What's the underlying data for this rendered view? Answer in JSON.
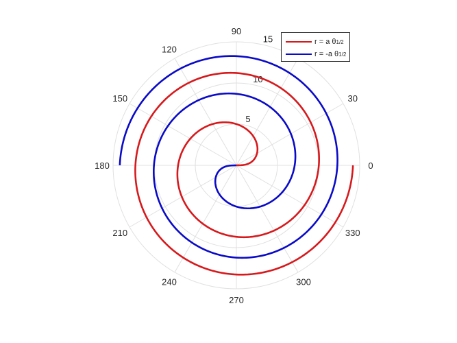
{
  "chart_data": {
    "type": "line",
    "coordinate_system": "polar",
    "theta_unit": "degrees",
    "theta_ticks": [
      0,
      30,
      60,
      90,
      120,
      150,
      180,
      210,
      240,
      270,
      300,
      330
    ],
    "theta_tick_labels": [
      "0",
      "30",
      "",
      "90",
      "120",
      "150",
      "180",
      "210",
      "240",
      "270",
      "300",
      "330"
    ],
    "r_ticks": [
      5,
      10,
      15
    ],
    "r_tick_labels": [
      "5",
      "10",
      "15"
    ],
    "rlim": [
      0,
      15
    ],
    "grid": true,
    "legend_placement": "top-right",
    "series": [
      {
        "name": "r = a θ^1/2",
        "legend_text": "r = a θ",
        "legend_sup": "1/2",
        "color": "#d7191c",
        "equation": "r = 4*sqrt(theta)",
        "theta_range_rad": [
          0,
          12.566
        ]
      },
      {
        "name": "r = -a θ^1/2",
        "legend_text": "r = -a θ",
        "legend_sup": "1/2",
        "color": "#0a0ac8",
        "equation": "r = -4*sqrt(theta)",
        "theta_range_rad": [
          0,
          12.566
        ]
      }
    ]
  }
}
